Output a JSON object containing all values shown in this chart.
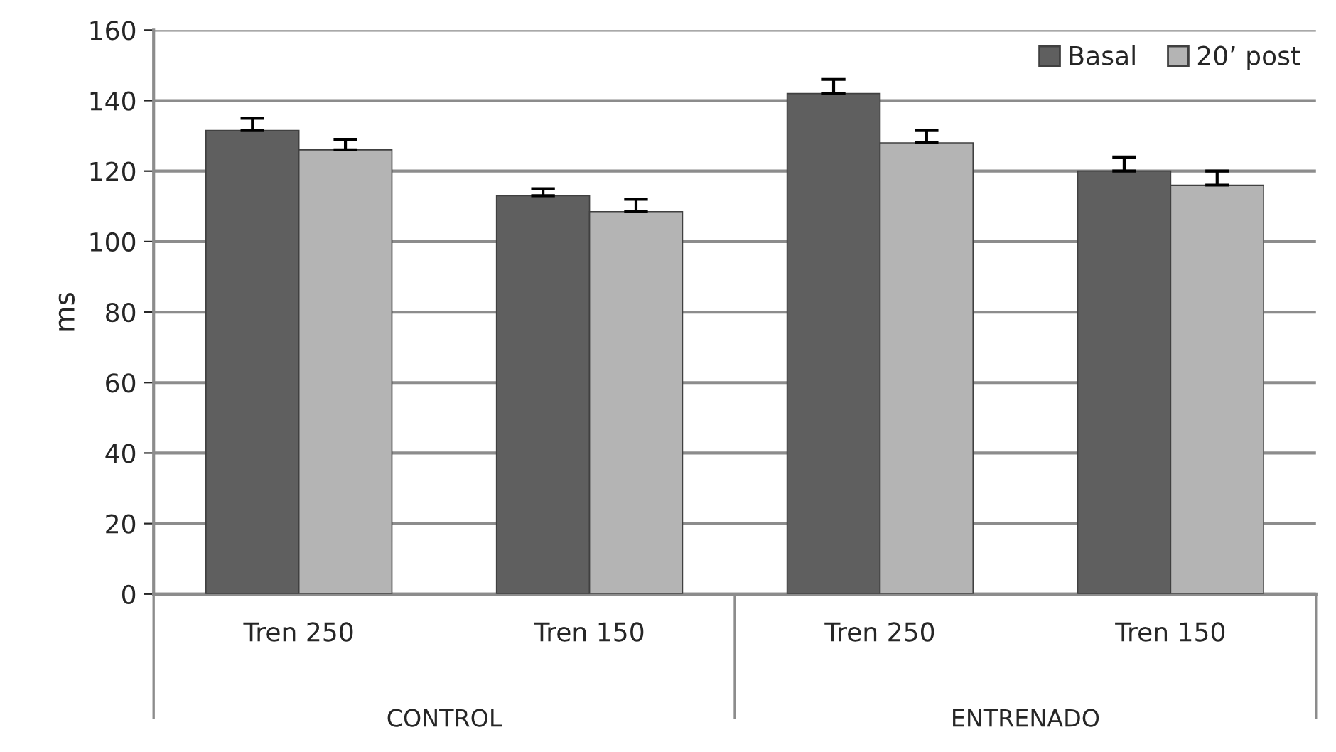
{
  "chart_data": {
    "type": "bar",
    "ylabel": "ms",
    "categories": [
      "Tren 250",
      "Tren 150",
      "Tren 250",
      "Tren 150"
    ],
    "series": [
      {
        "name": "Basal",
        "color": "#5f5f5f",
        "values": [
          131.5,
          113,
          142,
          120
        ],
        "errors": [
          3.5,
          2,
          4,
          4
        ]
      },
      {
        "name": "20’ post",
        "color": "#b4b4b4",
        "values": [
          126,
          108.5,
          128,
          116
        ],
        "errors": [
          3,
          3.5,
          3.5,
          4
        ]
      }
    ],
    "annotations": [
      "CONTROL",
      "ENTRENADO"
    ],
    "ylim": [
      0,
      160
    ],
    "yticks": [
      0,
      20,
      40,
      60,
      80,
      100,
      120,
      140,
      160
    ],
    "grid": "y",
    "legend": "top right"
  }
}
